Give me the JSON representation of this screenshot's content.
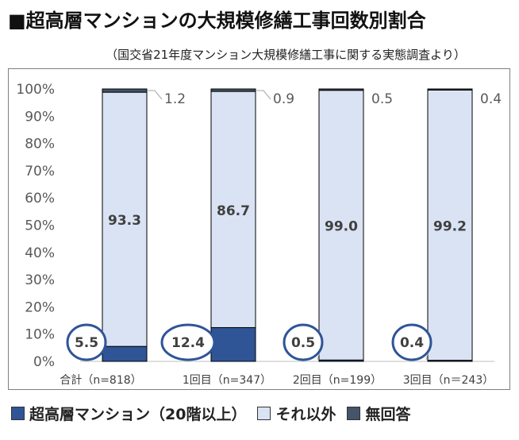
{
  "title": "■超高層マンションの大規模修繕工事回数別割合",
  "subtitle": "（国交省21年度マンション大規模修繕工事に関する実態調査より）",
  "chart_data": {
    "type": "bar",
    "stacked": true,
    "percent": true,
    "categories": [
      "合計（n=818）",
      "1回目（n=347）",
      "2回目（n=199）",
      "3回目（n＝243）"
    ],
    "series": [
      {
        "name": "超高層マンション（20階以上）",
        "values": [
          5.5,
          12.4,
          0.5,
          0.4
        ],
        "color": "#2f5597"
      },
      {
        "name": "それ以外",
        "values": [
          93.3,
          86.7,
          99.0,
          99.2
        ],
        "color": "#dae3f3"
      },
      {
        "name": "無回答",
        "values": [
          1.2,
          0.9,
          0.5,
          0.4
        ],
        "color": "#44546a"
      }
    ],
    "ytick_labels": [
      "0%",
      "10%",
      "20%",
      "30%",
      "40%",
      "50%",
      "60%",
      "70%",
      "80%",
      "90%",
      "100%"
    ],
    "ylim": [
      0,
      100
    ],
    "grid": false,
    "legend_position": "bottom",
    "data_labels": {
      "series0": [
        "5.5",
        "12.4",
        "0.5",
        "0.4"
      ],
      "series1": [
        "93.3",
        "86.7",
        "99.0",
        "99.2"
      ],
      "series2": [
        "1.2",
        "0.9",
        "0.5",
        "0.4"
      ]
    }
  }
}
